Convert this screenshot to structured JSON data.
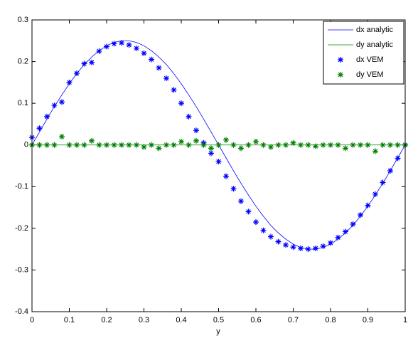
{
  "chart_data": {
    "type": "line",
    "xlabel": "y",
    "x": [
      0,
      0.02,
      0.04,
      0.06,
      0.08,
      0.1,
      0.12,
      0.14,
      0.16,
      0.18,
      0.2,
      0.22,
      0.24,
      0.26,
      0.28,
      0.3,
      0.32,
      0.34,
      0.36,
      0.38,
      0.4,
      0.42,
      0.44,
      0.46,
      0.48,
      0.5,
      0.52,
      0.54,
      0.56,
      0.58,
      0.6,
      0.62,
      0.64,
      0.66,
      0.68,
      0.7,
      0.72,
      0.74,
      0.76,
      0.78,
      0.8,
      0.82,
      0.84,
      0.86,
      0.88,
      0.9,
      0.92,
      0.94,
      0.96,
      0.98,
      1
    ],
    "series": [
      {
        "name": "dx analytic",
        "color": "#0000ff",
        "style": "line",
        "values": [
          0,
          0.031,
          0.062,
          0.092,
          0.12,
          0.147,
          0.171,
          0.193,
          0.211,
          0.226,
          0.238,
          0.246,
          0.25,
          0.25,
          0.246,
          0.238,
          0.226,
          0.211,
          0.193,
          0.171,
          0.147,
          0.12,
          0.092,
          0.062,
          0.031,
          0,
          -0.031,
          -0.062,
          -0.092,
          -0.12,
          -0.147,
          -0.171,
          -0.193,
          -0.211,
          -0.226,
          -0.238,
          -0.246,
          -0.25,
          -0.25,
          -0.246,
          -0.238,
          -0.226,
          -0.211,
          -0.193,
          -0.171,
          -0.147,
          -0.12,
          -0.092,
          -0.062,
          -0.031,
          0
        ]
      },
      {
        "name": "dy analytic",
        "color": "#008000",
        "style": "line",
        "values": [
          0,
          0,
          0,
          0,
          0,
          0,
          0,
          0,
          0,
          0,
          0,
          0,
          0,
          0,
          0,
          0,
          0,
          0,
          0,
          0,
          0,
          0,
          0,
          0,
          0,
          0,
          0,
          0,
          0,
          0,
          0,
          0,
          0,
          0,
          0,
          0,
          0,
          0,
          0,
          0,
          0,
          0,
          0,
          0,
          0,
          0,
          0,
          0,
          0,
          0,
          0
        ]
      },
      {
        "name": "dx VEM",
        "color": "#0000ff",
        "style": "star",
        "values": [
          0.018,
          0.04,
          0.068,
          0.095,
          0.103,
          0.15,
          0.172,
          0.195,
          0.198,
          0.225,
          0.236,
          0.243,
          0.245,
          0.24,
          0.232,
          0.22,
          0.205,
          0.185,
          0.16,
          0.132,
          0.1,
          0.068,
          0.035,
          0.005,
          -0.02,
          -0.04,
          -0.075,
          -0.105,
          -0.135,
          -0.16,
          -0.185,
          -0.205,
          -0.22,
          -0.232,
          -0.24,
          -0.245,
          -0.248,
          -0.25,
          -0.248,
          -0.243,
          -0.235,
          -0.222,
          -0.208,
          -0.19,
          -0.168,
          -0.145,
          -0.118,
          -0.09,
          -0.062,
          -0.032,
          0
        ]
      },
      {
        "name": "dy VEM",
        "color": "#008000",
        "style": "star",
        "values": [
          0,
          0,
          0,
          0,
          0.02,
          0,
          0,
          0,
          0.01,
          0,
          0,
          0,
          0,
          0,
          0,
          -0.005,
          0,
          -0.008,
          0,
          0,
          0.008,
          0,
          0.01,
          0,
          -0.008,
          0,
          0.012,
          0,
          -0.008,
          0,
          0.008,
          0,
          -0.005,
          0,
          0,
          0.005,
          0,
          0,
          -0.003,
          0,
          0,
          0,
          -0.008,
          0,
          0,
          0,
          -0.015,
          0,
          0,
          0,
          0
        ]
      }
    ],
    "xlim": [
      0,
      1
    ],
    "xticks": [
      0,
      0.1,
      0.2,
      0.3,
      0.4,
      0.5,
      0.6,
      0.7,
      0.8,
      0.9,
      1
    ],
    "ylim": [
      -0.4,
      0.3
    ],
    "yticks": [
      -0.4,
      -0.3,
      -0.2,
      -0.1,
      0,
      0.1,
      0.2,
      0.3
    ],
    "grid": false,
    "legend": "upper right"
  }
}
